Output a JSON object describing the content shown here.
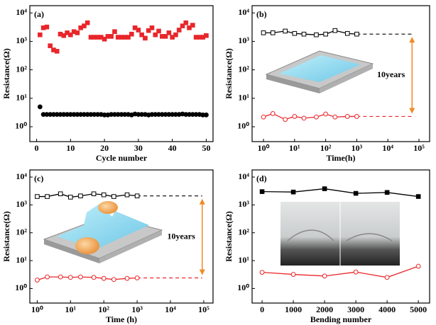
{
  "chart_data": [
    {
      "type": "scatter",
      "label": "(a)",
      "xlabel": "Cycle number",
      "ylabel": "Resistance(Ω)",
      "xlog": false,
      "ylog": true,
      "xlim": [
        -2,
        52
      ],
      "ylim": [
        0.3,
        18000
      ],
      "xticks": [
        0,
        10,
        20,
        30,
        40,
        50
      ],
      "yticks": [
        {
          "value": 1,
          "label": "10⁰"
        },
        {
          "value": 10,
          "label": "10¹"
        },
        {
          "value": 100,
          "label": "10²"
        },
        {
          "value": 1000,
          "label": "10³"
        },
        {
          "value": 10000,
          "label": "10⁴"
        }
      ],
      "x": [
        1,
        2,
        3,
        4,
        5,
        6,
        7,
        8,
        9,
        10,
        11,
        12,
        13,
        14,
        15,
        16,
        17,
        18,
        19,
        20,
        21,
        22,
        23,
        24,
        25,
        26,
        27,
        28,
        29,
        30,
        31,
        32,
        33,
        34,
        35,
        36,
        37,
        38,
        39,
        40,
        41,
        42,
        43,
        44,
        45,
        46,
        47,
        48,
        49,
        50
      ],
      "series": [
        {
          "color": "#e8262a",
          "marker": "square",
          "filled": true,
          "values": [
            1700,
            3000,
            3200,
            700,
            500,
            450,
            1800,
            1600,
            2000,
            1700,
            2200,
            2000,
            3000,
            3500,
            4500,
            1400,
            1400,
            1400,
            1400,
            1200,
            1500,
            1500,
            2200,
            1400,
            1400,
            1400,
            1400,
            1800,
            3000,
            2500,
            1700,
            1300,
            2400,
            3000,
            1700,
            2300,
            1500,
            1500,
            2000,
            1400,
            1700,
            2500,
            3500,
            4500,
            3000,
            3700,
            1400,
            1400,
            1400,
            1600
          ]
        },
        {
          "color": "#000000",
          "marker": "circle",
          "filled": true,
          "values": [
            5,
            2.7,
            2.7,
            2.7,
            2.7,
            2.7,
            2.7,
            2.7,
            2.7,
            2.7,
            2.7,
            2.7,
            2.7,
            2.7,
            2.7,
            2.7,
            2.7,
            2.7,
            2.7,
            2.6,
            2.6,
            2.7,
            2.7,
            2.7,
            2.7,
            2.7,
            2.7,
            2.6,
            2.8,
            2.7,
            2.7,
            2.7,
            2.6,
            2.7,
            2.7,
            2.7,
            2.7,
            2.7,
            2.7,
            2.7,
            2.7,
            2.7,
            2.8,
            2.7,
            2.7,
            2.7,
            2.7,
            2.7,
            2.6,
            2.6
          ]
        }
      ]
    },
    {
      "type": "line",
      "label": "(b)",
      "xlabel": "Time(h)",
      "ylabel": "Resistance(Ω)",
      "xlog": true,
      "ylog": true,
      "xlim": [
        0.43,
        220000
      ],
      "ylim": [
        0.3,
        18000
      ],
      "xticks": [
        {
          "value": 1,
          "label": "10⁰"
        },
        {
          "value": 10,
          "label": "10¹"
        },
        {
          "value": 100,
          "label": "10²"
        },
        {
          "value": 1000,
          "label": "10³"
        },
        {
          "value": 10000,
          "label": "10⁴"
        },
        {
          "value": 100000,
          "label": "10⁵"
        }
      ],
      "yticks": [
        {
          "value": 1,
          "label": "10⁰"
        },
        {
          "value": 10,
          "label": "10¹"
        },
        {
          "value": 100,
          "label": "10²"
        },
        {
          "value": 1000,
          "label": "10³"
        },
        {
          "value": 10000,
          "label": "10⁴"
        }
      ],
      "x": [
        1,
        2,
        5,
        10,
        20,
        50,
        100,
        200,
        500,
        1000
      ],
      "series": [
        {
          "color": "#000000",
          "marker": "square",
          "filled": false,
          "values": [
            2000,
            2000,
            2300,
            1900,
            1800,
            1700,
            1800,
            2400,
            1900,
            1800
          ]
        },
        {
          "color": "#e8262a",
          "marker": "circle",
          "filled": false,
          "values": [
            2.2,
            2.9,
            1.8,
            2.3,
            2.0,
            2.2,
            2.8,
            2.2,
            2.3,
            2.3
          ]
        }
      ],
      "extrapolate_to": 60000,
      "annotation": "10years",
      "annotation_color": "#f08a24"
    },
    {
      "type": "line",
      "label": "(c)",
      "xlabel": "Time (h)",
      "ylabel": "Resistance(Ω)",
      "xlog": true,
      "ylog": true,
      "xlim": [
        0.6,
        190000
      ],
      "ylim": [
        0.3,
        18000
      ],
      "xticks": [
        {
          "value": 1,
          "label": "10⁰"
        },
        {
          "value": 10,
          "label": "10¹"
        },
        {
          "value": 100,
          "label": "10²"
        },
        {
          "value": 1000,
          "label": "10³"
        },
        {
          "value": 10000,
          "label": "10⁴"
        },
        {
          "value": 100000,
          "label": "10⁵"
        }
      ],
      "yticks": [
        {
          "value": 1,
          "label": "10⁰"
        },
        {
          "value": 10,
          "label": "10¹"
        },
        {
          "value": 100,
          "label": "10²"
        },
        {
          "value": 1000,
          "label": "10³"
        },
        {
          "value": 10000,
          "label": "10⁴"
        }
      ],
      "x": [
        1,
        2,
        5,
        10,
        20,
        50,
        100,
        200,
        500,
        1000
      ],
      "series": [
        {
          "color": "#000000",
          "marker": "square",
          "filled": false,
          "values": [
            2000,
            2000,
            2500,
            1900,
            2100,
            2500,
            2300,
            2000,
            2300,
            2100
          ]
        },
        {
          "color": "#e8262a",
          "marker": "circle",
          "filled": false,
          "values": [
            2.0,
            2.6,
            2.6,
            2.5,
            2.6,
            2.5,
            2.3,
            2.1,
            2.3,
            2.4
          ]
        }
      ],
      "extrapolate_to": 90000,
      "annotation": "10years",
      "annotation_color": "#f08a24"
    },
    {
      "type": "line",
      "label": "(d)",
      "xlabel": "Bending number",
      "ylabel": "Resistance(Ω)",
      "xlog": false,
      "ylog": true,
      "xlim": [
        -320,
        5360
      ],
      "ylim": [
        0.3,
        18000
      ],
      "xticks": [
        0,
        1000,
        2000,
        3000,
        4000,
        5000
      ],
      "yticks": [
        {
          "value": 1,
          "label": "10⁰"
        },
        {
          "value": 10,
          "label": "10¹"
        },
        {
          "value": 100,
          "label": "10²"
        },
        {
          "value": 1000,
          "label": "10³"
        },
        {
          "value": 10000,
          "label": "10⁴"
        }
      ],
      "x": [
        0,
        1000,
        2000,
        3000,
        4000,
        5000
      ],
      "series": [
        {
          "color": "#000000",
          "marker": "square",
          "filled": true,
          "values": [
            3000,
            2900,
            3800,
            2600,
            2800,
            2000
          ]
        },
        {
          "color": "#e8262a",
          "marker": "circle",
          "filled": false,
          "values": [
            3.8,
            3.2,
            2.8,
            3.9,
            2.5,
            6.3
          ]
        }
      ]
    }
  ]
}
